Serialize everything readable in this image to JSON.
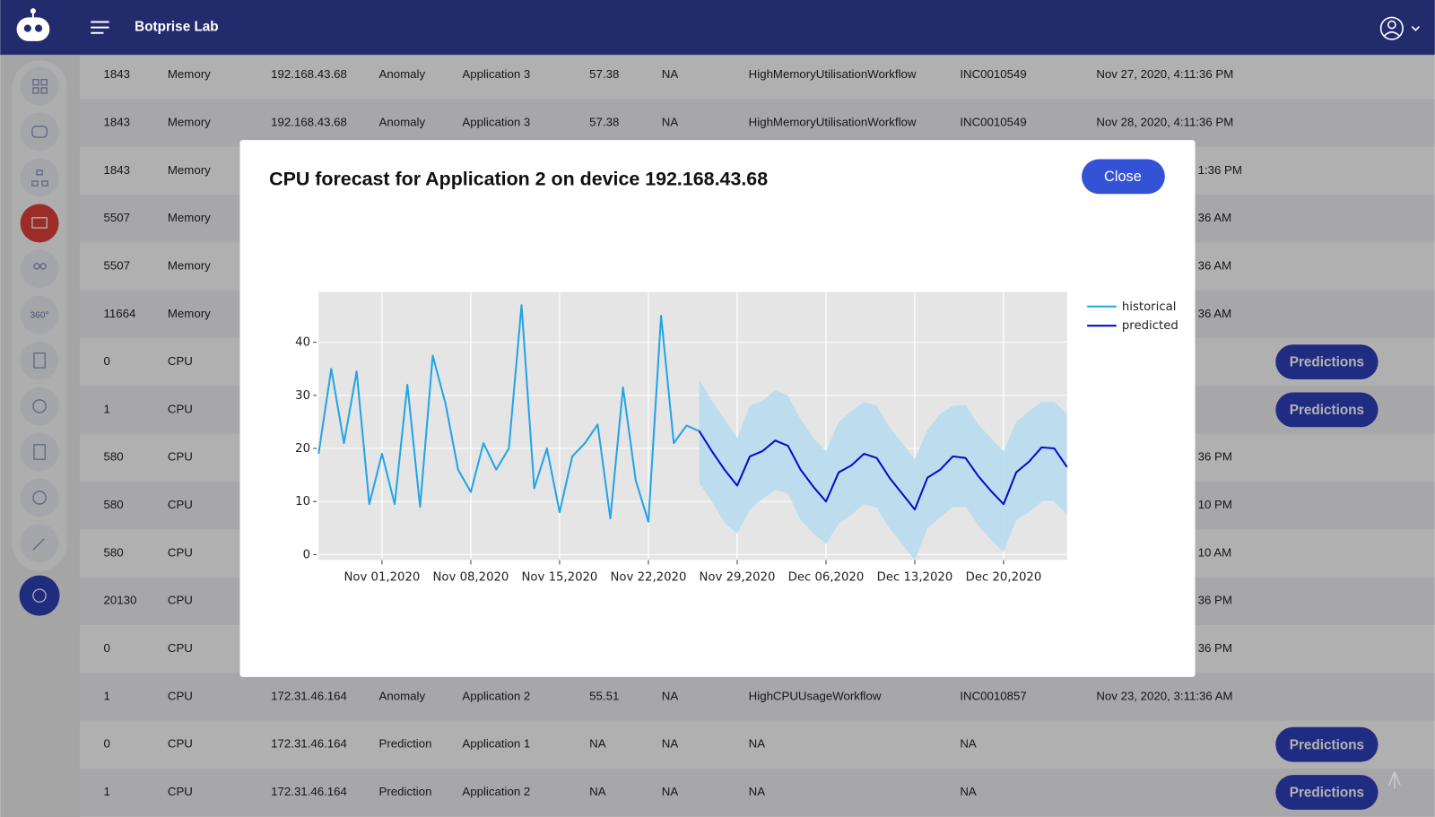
{
  "header": {
    "title": "Botprise Lab"
  },
  "sidebar": {
    "label_360": "360°"
  },
  "table": {
    "rows": [
      {
        "id": "1843",
        "metric": "Memory",
        "ip": "192.168.43.68",
        "kind": "Anomaly",
        "app": "Application 3",
        "score": "57.38",
        "na": "NA",
        "workflow": "HighMemoryUtilisationWorkflow",
        "incident": "INC0010549",
        "time": "Nov 27, 2020, 4:11:36 PM"
      },
      {
        "id": "1843",
        "metric": "Memory",
        "ip": "192.168.43.68",
        "kind": "Anomaly",
        "app": "Application 3",
        "score": "57.38",
        "na": "NA",
        "workflow": "HighMemoryUtilisationWorkflow",
        "incident": "INC0010549",
        "time": "Nov 28, 2020, 4:11:36 PM"
      },
      {
        "id": "1843",
        "metric": "Memory",
        "time": "1:36 PM"
      },
      {
        "id": "5507",
        "metric": "Memory",
        "time": "36 AM"
      },
      {
        "id": "5507",
        "metric": "Memory",
        "time": "36 AM"
      },
      {
        "id": "11664",
        "metric": "Memory",
        "time": "36 AM"
      },
      {
        "id": "0",
        "metric": "CPU",
        "action": "Predictions"
      },
      {
        "id": "1",
        "metric": "CPU",
        "action": "Predictions"
      },
      {
        "id": "580",
        "metric": "CPU",
        "time": "36 PM"
      },
      {
        "id": "580",
        "metric": "CPU",
        "time": "10 PM"
      },
      {
        "id": "580",
        "metric": "CPU",
        "time": "10 AM"
      },
      {
        "id": "20130",
        "metric": "CPU",
        "time": "36 PM"
      },
      {
        "id": "0",
        "metric": "CPU",
        "time": "36 PM"
      },
      {
        "id": "1",
        "metric": "CPU",
        "ip": "172.31.46.164",
        "kind": "Anomaly",
        "app": "Application 2",
        "score": "55.51",
        "na": "NA",
        "workflow": "HighCPUUsageWorkflow",
        "incident": "INC0010857",
        "time": "Nov 23, 2020, 3:11:36 AM"
      },
      {
        "id": "0",
        "metric": "CPU",
        "ip": "172.31.46.164",
        "kind": "Prediction",
        "app": "Application 1",
        "score": "NA",
        "na": "NA",
        "workflow": "NA",
        "incident": "NA",
        "action": "Predictions"
      },
      {
        "id": "1",
        "metric": "CPU",
        "ip": "172.31.46.164",
        "kind": "Prediction",
        "app": "Application 2",
        "score": "NA",
        "na": "NA",
        "workflow": "NA",
        "incident": "NA",
        "action": "Predictions"
      }
    ]
  },
  "modal": {
    "title": "CPU forecast for Application 2 on device 192.168.43.68",
    "close": "Close"
  },
  "chart_data": {
    "type": "line",
    "legend": "outside-right",
    "grid": true,
    "xlim": [
      "2020-10-27",
      "2020-12-25"
    ],
    "xticks": [
      {
        "value": "2020-11-01",
        "label": "Nov 01,2020"
      },
      {
        "value": "2020-11-08",
        "label": "Nov 08,2020"
      },
      {
        "value": "2020-11-15",
        "label": "Nov 15,2020"
      },
      {
        "value": "2020-11-22",
        "label": "Nov 22,2020"
      },
      {
        "value": "2020-11-29",
        "label": "Nov 29,2020"
      },
      {
        "value": "2020-12-06",
        "label": "Dec 06,2020"
      },
      {
        "value": "2020-12-13",
        "label": "Dec 13,2020"
      },
      {
        "value": "2020-12-20",
        "label": "Dec 20,2020"
      }
    ],
    "ylim": [
      -1,
      49.5
    ],
    "yticks": [
      0,
      10,
      20,
      30,
      40
    ],
    "series": [
      {
        "name": "historical",
        "color": "#22a5e6",
        "x": [
          "2020-10-27",
          "2020-10-28",
          "2020-10-29",
          "2020-10-30",
          "2020-10-31",
          "2020-11-01",
          "2020-11-02",
          "2020-11-03",
          "2020-11-04",
          "2020-11-05",
          "2020-11-06",
          "2020-11-07",
          "2020-11-08",
          "2020-11-09",
          "2020-11-10",
          "2020-11-11",
          "2020-11-12",
          "2020-11-13",
          "2020-11-14",
          "2020-11-15",
          "2020-11-16",
          "2020-11-17",
          "2020-11-18",
          "2020-11-19",
          "2020-11-20",
          "2020-11-21",
          "2020-11-22",
          "2020-11-23",
          "2020-11-24",
          "2020-11-25",
          "2020-11-26"
        ],
        "values": [
          19,
          35,
          21,
          34.5,
          9.5,
          19,
          9.5,
          32,
          9,
          37.5,
          28.5,
          16,
          11.8,
          21,
          16,
          20,
          47,
          12.5,
          20,
          8,
          18.5,
          21,
          24.5,
          6.8,
          31.5,
          14,
          6.2,
          45,
          21,
          24.3,
          23.3
        ]
      },
      {
        "name": "predicted",
        "color": "#0a0acd",
        "band_color": "#b8dcee",
        "x": [
          "2020-11-26",
          "2020-11-27",
          "2020-11-28",
          "2020-11-29",
          "2020-11-30",
          "2020-12-01",
          "2020-12-02",
          "2020-12-03",
          "2020-12-04",
          "2020-12-05",
          "2020-12-06",
          "2020-12-07",
          "2020-12-08",
          "2020-12-09",
          "2020-12-10",
          "2020-12-11",
          "2020-12-12",
          "2020-12-13",
          "2020-12-14",
          "2020-12-15",
          "2020-12-16",
          "2020-12-17",
          "2020-12-18",
          "2020-12-19",
          "2020-12-20",
          "2020-12-21",
          "2020-12-22",
          "2020-12-23",
          "2020-12-24",
          "2020-12-25"
        ],
        "values": [
          23.3,
          19.5,
          16,
          13,
          18.5,
          19.5,
          21.5,
          20.5,
          16,
          12.8,
          10,
          15.5,
          16.8,
          19,
          18.2,
          14.5,
          11.5,
          8.5,
          14.5,
          16,
          18.5,
          18.2,
          14.8,
          12,
          9.5,
          15.5,
          17.5,
          20.2,
          20,
          16.5
        ],
        "upper": [
          33,
          29,
          25.5,
          22,
          28,
          29,
          31,
          30,
          25.5,
          22,
          19.5,
          25,
          27,
          28.8,
          28,
          24,
          21,
          18,
          23.5,
          26.5,
          28,
          28.2,
          24.5,
          22,
          19.5,
          25,
          27,
          28.8,
          28.8,
          26.5
        ],
        "lower": [
          13.5,
          10,
          6,
          4,
          8.5,
          10.5,
          12.2,
          11.5,
          6.5,
          4,
          2,
          5.8,
          7.5,
          9.5,
          8.8,
          5,
          2,
          -1,
          5,
          7,
          9,
          9,
          5.5,
          2.8,
          0.5,
          6.5,
          8,
          10,
          10,
          7.5
        ]
      }
    ]
  }
}
